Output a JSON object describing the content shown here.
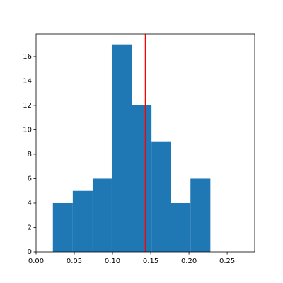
{
  "chart_data": {
    "type": "histogram",
    "bins": [
      0.022,
      0.048,
      0.074,
      0.099,
      0.125,
      0.151,
      0.176,
      0.202,
      0.228
    ],
    "values": [
      4,
      5,
      6,
      17,
      12,
      9,
      4,
      6
    ],
    "color": "#1f77b4",
    "vline": {
      "value": 0.143,
      "color": "#ff0000"
    },
    "xlim": [
      0,
      0.286
    ],
    "ylim": [
      0,
      17.85
    ],
    "xticks": [
      {
        "value": 0,
        "label": "0.00"
      },
      {
        "value": 0.05,
        "label": "0.05"
      },
      {
        "value": 0.1,
        "label": "0.10"
      },
      {
        "value": 0.15,
        "label": "0.15"
      },
      {
        "value": 0.2,
        "label": "0.20"
      },
      {
        "value": 0.25,
        "label": "0.25"
      }
    ],
    "yticks": [
      0,
      2,
      4,
      6,
      8,
      10,
      12,
      14,
      16
    ]
  }
}
